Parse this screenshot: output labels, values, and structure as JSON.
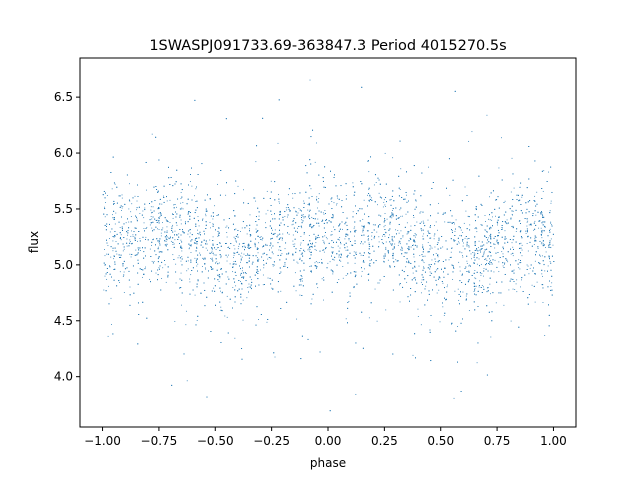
{
  "chart_data": {
    "type": "scatter",
    "title": "1SWASPJ091733.69-363847.3 Period 4015270.5s",
    "xlabel": "phase",
    "ylabel": "flux",
    "xlim": [
      -1.1,
      1.1
    ],
    "ylim": [
      3.55,
      6.85
    ],
    "x_ticks": [
      -1.0,
      -0.75,
      -0.5,
      -0.25,
      0.0,
      0.25,
      0.5,
      0.75,
      1.0
    ],
    "x_tick_labels": [
      "−1.00",
      "−0.75",
      "−0.50",
      "−0.25",
      "0.00",
      "0.25",
      "0.50",
      "0.75",
      "1.00"
    ],
    "y_ticks": [
      4.0,
      4.5,
      5.0,
      5.5,
      6.0,
      6.5
    ],
    "y_tick_labels": [
      "4.0",
      "4.5",
      "5.0",
      "5.5",
      "6.0",
      "6.5"
    ],
    "grid": false,
    "marker_color": "#1f77b4",
    "series": [
      {
        "x_range": [
          -1.0,
          1.0
        ],
        "mean_flux": 5.2,
        "flux_spread": 0.25,
        "flux_min": 3.7,
        "flux_max": 6.7,
        "variation": "roughly constant ~5.2 with two mirrored halves (phase -1..0 and 0..1), slightly brighter near phase ±0.9 and ±0.1"
      }
    ]
  }
}
